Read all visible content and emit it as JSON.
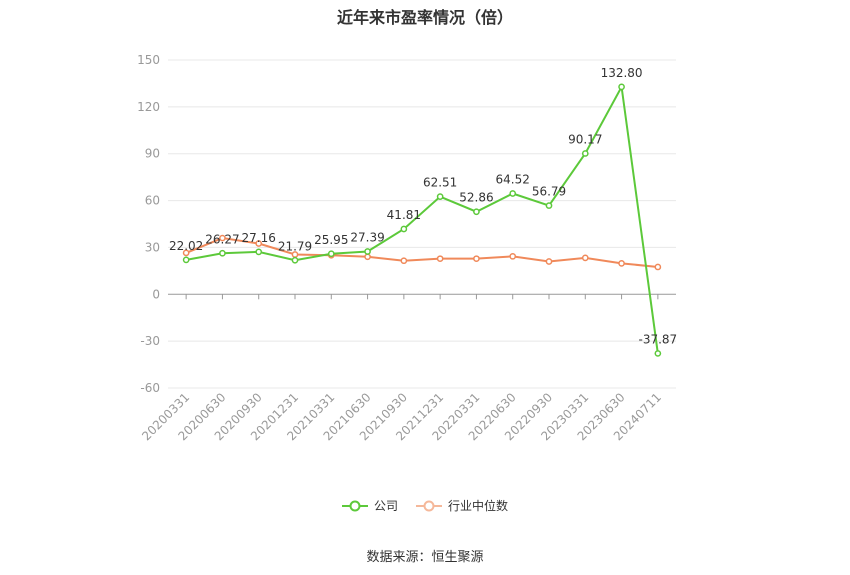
{
  "chart_data": {
    "type": "line",
    "title": "近年来市盈率情况（倍）",
    "categories": [
      "20200331",
      "20200630",
      "20200930",
      "20201231",
      "20210331",
      "20210630",
      "20210930",
      "20211231",
      "20220331",
      "20220630",
      "20220930",
      "20230331",
      "20230630",
      "20240711"
    ],
    "series": [
      {
        "name": "公司",
        "color": "#5cc93a",
        "values": [
          22.02,
          26.27,
          27.16,
          21.79,
          25.95,
          27.39,
          41.81,
          62.51,
          52.86,
          64.52,
          56.79,
          90.17,
          132.8,
          -37.87
        ],
        "labels": [
          "22.02",
          "26.27",
          "27.16",
          "21.79",
          "25.95",
          "27.39",
          "41.81",
          "62.51",
          "52.86",
          "64.52",
          "56.79",
          "90.17",
          "132.80",
          "-37.87"
        ]
      },
      {
        "name": "行业中位数",
        "color": "#f0895a",
        "values": [
          26.5,
          36.0,
          32.5,
          25.5,
          25.0,
          24.0,
          21.5,
          22.8,
          22.8,
          24.3,
          21.0,
          23.3,
          19.8,
          17.5
        ]
      }
    ],
    "yticks": [
      150,
      120,
      90,
      60,
      30,
      0,
      -30,
      -60
    ],
    "ylim": [
      -60,
      150
    ],
    "grid": true,
    "legend_position": "bottom"
  },
  "source": "数据来源：恒生聚源"
}
